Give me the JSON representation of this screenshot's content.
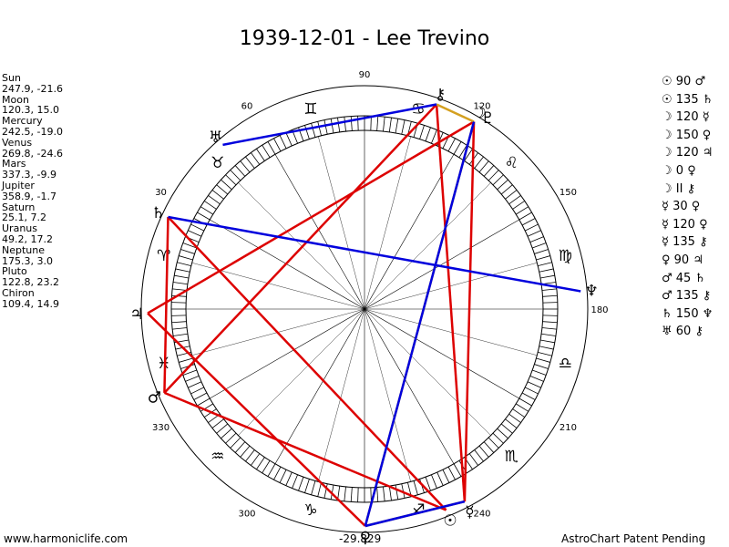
{
  "title": "1939-12-01 - Lee Trevino",
  "positions": [
    {
      "name": "Sun",
      "coords": "247.9, -21.6"
    },
    {
      "name": "Moon",
      "coords": "120.3, 15.0"
    },
    {
      "name": "Mercury",
      "coords": "242.5, -19.0"
    },
    {
      "name": "Venus",
      "coords": "269.8, -24.6"
    },
    {
      "name": "Mars",
      "coords": "337.3, -9.9"
    },
    {
      "name": "Jupiter",
      "coords": "358.9, -1.7"
    },
    {
      "name": "Saturn",
      "coords": "25.1, 7.2"
    },
    {
      "name": "Uranus",
      "coords": "49.2, 17.2"
    },
    {
      "name": "Neptune",
      "coords": "175.3, 3.0"
    },
    {
      "name": "Pluto",
      "coords": "122.8, 23.2"
    },
    {
      "name": "Chiron",
      "coords": "109.4, 14.9"
    }
  ],
  "aspects": [
    {
      "p1": "☉",
      "angle": "90",
      "p2": "♂"
    },
    {
      "p1": "☉",
      "angle": "135",
      "p2": "♄"
    },
    {
      "p1": "☽",
      "angle": "120",
      "p2": "☿"
    },
    {
      "p1": "☽",
      "angle": "150",
      "p2": "♀"
    },
    {
      "p1": "☽",
      "angle": "120",
      "p2": "♃"
    },
    {
      "p1": "☽",
      "angle": "0",
      "p2": "♀"
    },
    {
      "p1": "☽",
      "angle": "II",
      "p2": "⚷"
    },
    {
      "p1": "☿",
      "angle": "30",
      "p2": "♀"
    },
    {
      "p1": "☿",
      "angle": "120",
      "p2": "♀"
    },
    {
      "p1": "☿",
      "angle": "135",
      "p2": "⚷"
    },
    {
      "p1": "♀",
      "angle": "90",
      "p2": "♃"
    },
    {
      "p1": "♂",
      "angle": "45",
      "p2": "♄"
    },
    {
      "p1": "♂",
      "angle": "135",
      "p2": "⚷"
    },
    {
      "p1": "♄",
      "angle": "150",
      "p2": "♆"
    },
    {
      "p1": "♅",
      "angle": "60",
      "p2": "⚷"
    }
  ],
  "footer": {
    "left": "www.harmoniclife.com",
    "center": "-29.829",
    "right": "AstroChart Patent Pending"
  },
  "chart_data": {
    "type": "astrological-wheel",
    "degree_labels": [
      "90",
      "60",
      "30",
      "120",
      "150",
      "180",
      "210",
      "240",
      "330",
      "300"
    ],
    "planets": [
      {
        "name": "Sun",
        "glyph": "☉",
        "longitude": 247.9
      },
      {
        "name": "Moon",
        "glyph": "☽",
        "longitude": 120.3
      },
      {
        "name": "Mercury",
        "glyph": "☿",
        "longitude": 242.5
      },
      {
        "name": "Venus",
        "glyph": "♀",
        "longitude": 269.8
      },
      {
        "name": "Mars",
        "glyph": "♂",
        "longitude": 337.3
      },
      {
        "name": "Jupiter",
        "glyph": "♃",
        "longitude": 358.9
      },
      {
        "name": "Saturn",
        "glyph": "♄",
        "longitude": 25.1
      },
      {
        "name": "Uranus",
        "glyph": "♅",
        "longitude": 49.2
      },
      {
        "name": "Neptune",
        "glyph": "♆",
        "longitude": 175.3
      },
      {
        "name": "Pluto",
        "glyph": "♇",
        "longitude": 122.8
      },
      {
        "name": "Chiron",
        "glyph": "⚷",
        "longitude": 109.4
      }
    ],
    "signs": [
      {
        "glyph": "♈",
        "longitude": 15
      },
      {
        "glyph": "♉",
        "longitude": 45
      },
      {
        "glyph": "♊",
        "longitude": 75
      },
      {
        "glyph": "♋",
        "longitude": 105
      },
      {
        "glyph": "♌",
        "longitude": 135
      },
      {
        "glyph": "♍",
        "longitude": 165
      },
      {
        "glyph": "♎",
        "longitude": 195
      },
      {
        "glyph": "♏",
        "longitude": 225
      },
      {
        "glyph": "♐",
        "longitude": 255
      },
      {
        "glyph": "♑",
        "longitude": 285
      },
      {
        "glyph": "♒",
        "longitude": 315
      },
      {
        "glyph": "♓",
        "longitude": 345
      }
    ],
    "aspect_lines": [
      {
        "from": "Sun",
        "to": "Mars",
        "color": "#dd0000"
      },
      {
        "from": "Sun",
        "to": "Saturn",
        "color": "#dd0000"
      },
      {
        "from": "Moon",
        "to": "Mercury",
        "color": "#dd0000"
      },
      {
        "from": "Moon",
        "to": "Jupiter",
        "color": "#dd0000"
      },
      {
        "from": "Mercury",
        "to": "Chiron",
        "color": "#dd0000"
      },
      {
        "from": "Mars",
        "to": "Saturn",
        "color": "#dd0000"
      },
      {
        "from": "Mars",
        "to": "Chiron",
        "color": "#dd0000"
      },
      {
        "from": "Venus",
        "to": "Jupiter",
        "color": "#dd0000"
      },
      {
        "from": "Moon",
        "to": "Venus",
        "color": "#d4a020"
      },
      {
        "from": "Moon",
        "to": "Chiron",
        "color": "#d4a020"
      },
      {
        "from": "Mercury",
        "to": "Venus",
        "color": "#d4a020"
      },
      {
        "from": "Saturn",
        "to": "Neptune",
        "color": "#0000dd"
      },
      {
        "from": "Uranus",
        "to": "Chiron",
        "color": "#0000dd"
      },
      {
        "from": "Moon",
        "to": "Venus",
        "color": "#0000dd"
      },
      {
        "from": "Mercury",
        "to": "Venus",
        "color": "#0000dd"
      }
    ],
    "colors": {
      "hard": "#dd0000",
      "soft": "#0000dd",
      "minor": "#d4a020"
    }
  }
}
